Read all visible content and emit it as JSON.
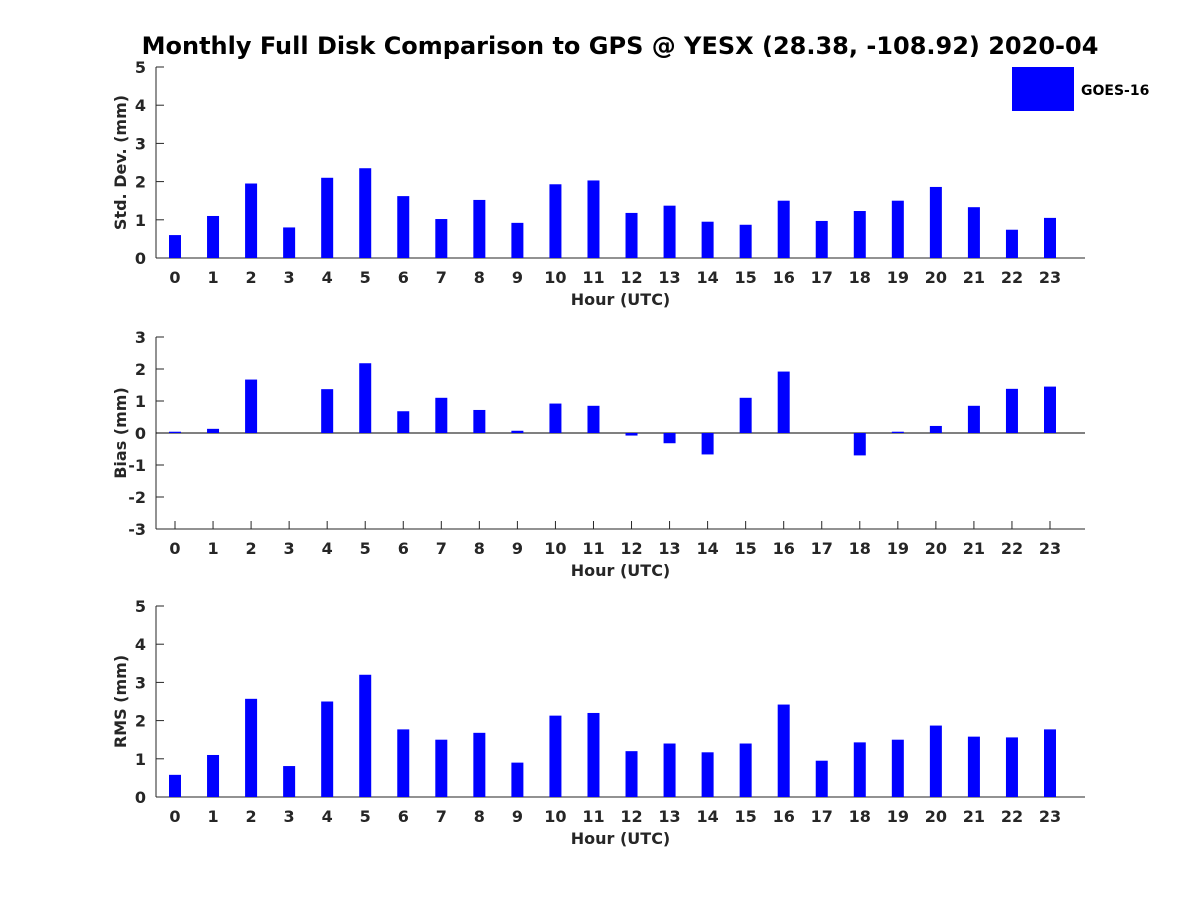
{
  "title": "Monthly Full Disk Comparison to GPS @ YESX (28.38, -108.92) 2020-04",
  "colors": {
    "bar": "#0000ff",
    "axis": "#262626",
    "background": "#ffffff"
  },
  "legend": {
    "label": "GOES-16",
    "placement": "top-right"
  },
  "chart_data": [
    {
      "type": "bar",
      "title": "",
      "xlabel": "Hour (UTC)",
      "ylabel": "Std. Dev. (mm)",
      "ylim": [
        0,
        5
      ],
      "yticks": [
        0,
        1,
        2,
        3,
        4,
        5
      ],
      "categories": [
        "0",
        "1",
        "2",
        "3",
        "4",
        "5",
        "6",
        "7",
        "8",
        "9",
        "10",
        "11",
        "12",
        "13",
        "14",
        "15",
        "16",
        "17",
        "18",
        "19",
        "20",
        "21",
        "22",
        "23"
      ],
      "series": [
        {
          "name": "GOES-16",
          "values": [
            0.6,
            1.1,
            1.95,
            0.8,
            2.1,
            2.35,
            1.62,
            1.02,
            1.52,
            0.92,
            1.93,
            2.03,
            1.18,
            1.37,
            0.95,
            0.87,
            1.5,
            0.97,
            1.23,
            1.5,
            1.86,
            1.33,
            0.74,
            1.05
          ]
        }
      ]
    },
    {
      "type": "bar",
      "title": "",
      "xlabel": "Hour (UTC)",
      "ylabel": "Bias (mm)",
      "ylim": [
        -3,
        3
      ],
      "yticks": [
        -3,
        -2,
        -1,
        0,
        1,
        2,
        3
      ],
      "categories": [
        "0",
        "1",
        "2",
        "3",
        "4",
        "5",
        "6",
        "7",
        "8",
        "9",
        "10",
        "11",
        "12",
        "13",
        "14",
        "15",
        "16",
        "17",
        "18",
        "19",
        "20",
        "21",
        "22",
        "23"
      ],
      "series": [
        {
          "name": "GOES-16",
          "values": [
            0.04,
            0.13,
            1.67,
            0.0,
            1.37,
            2.18,
            0.68,
            1.1,
            0.72,
            0.07,
            0.92,
            0.85,
            -0.08,
            -0.32,
            -0.67,
            1.1,
            1.92,
            0.0,
            -0.7,
            0.04,
            0.22,
            0.85,
            1.38,
            1.45
          ]
        }
      ]
    },
    {
      "type": "bar",
      "title": "",
      "xlabel": "Hour (UTC)",
      "ylabel": "RMS (mm)",
      "ylim": [
        0,
        5
      ],
      "yticks": [
        0,
        1,
        2,
        3,
        4,
        5
      ],
      "categories": [
        "0",
        "1",
        "2",
        "3",
        "4",
        "5",
        "6",
        "7",
        "8",
        "9",
        "10",
        "11",
        "12",
        "13",
        "14",
        "15",
        "16",
        "17",
        "18",
        "19",
        "20",
        "21",
        "22",
        "23"
      ],
      "series": [
        {
          "name": "GOES-16",
          "values": [
            0.58,
            1.1,
            2.57,
            0.81,
            2.5,
            3.2,
            1.77,
            1.5,
            1.68,
            0.9,
            2.13,
            2.2,
            1.2,
            1.4,
            1.17,
            1.4,
            2.42,
            0.95,
            1.43,
            1.5,
            1.87,
            1.58,
            1.56,
            1.77
          ]
        }
      ]
    }
  ]
}
